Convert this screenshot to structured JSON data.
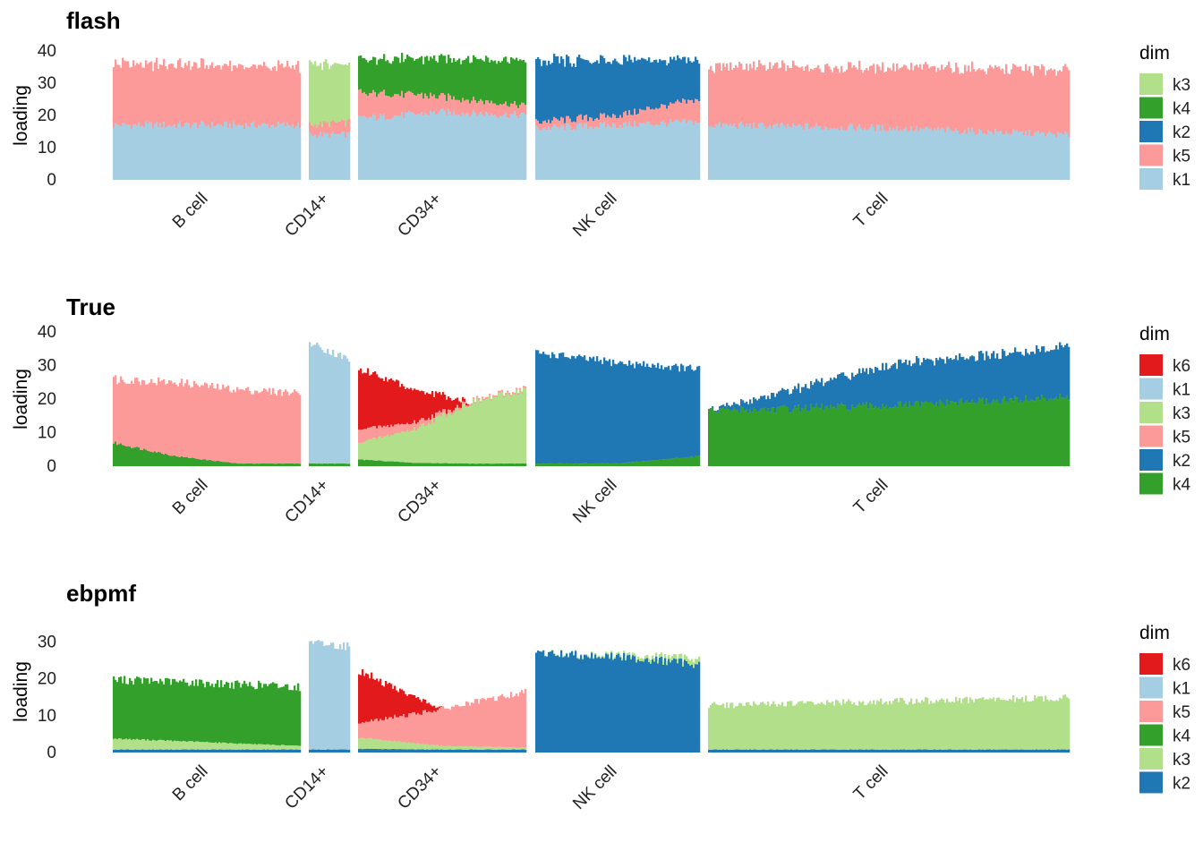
{
  "chart_data": {
    "type": "structure-plot (stacked bar)",
    "colors": {
      "k1": "#a6cee3",
      "k2": "#1f78b4",
      "k3": "#b2df8a",
      "k4": "#33a02c",
      "k5": "#fb9a99",
      "k6": "#e31a1c"
    },
    "groups": [
      "B cell",
      "CD14+",
      "CD34+",
      "NK cell",
      "T cell"
    ],
    "ylabel": "loading",
    "legend_title": "dim",
    "panels": [
      {
        "title": "flash",
        "ylim": [
          0,
          40
        ],
        "yticks": [
          0,
          10,
          20,
          30,
          40
        ],
        "legend": [
          "k3",
          "k4",
          "k2",
          "k5",
          "k1"
        ],
        "profiles": {
          "B cell": [
            {
              "k": "k1",
              "values": [
                17,
                17
              ]
            },
            {
              "k": "k5",
              "values": [
                19,
                18
              ]
            }
          ],
          "CD14+": [
            {
              "k": "k1",
              "values": [
                14,
                14
              ]
            },
            {
              "k": "k5",
              "values": [
                3,
                4
              ]
            },
            {
              "k": "k3",
              "values": [
                19,
                18
              ]
            }
          ],
          "CD34+": [
            {
              "k": "k1",
              "values": [
                19,
                21,
                20
              ]
            },
            {
              "k": "k5",
              "values": [
                8,
                5,
                3
              ]
            },
            {
              "k": "k4",
              "values": [
                10,
                12,
                14
              ]
            }
          ],
          "NK cell": [
            {
              "k": "k1",
              "values": [
                16,
                17,
                18
              ]
            },
            {
              "k": "k5",
              "values": [
                2,
                3,
                7
              ]
            },
            {
              "k": "k2",
              "values": [
                19,
                17,
                12
              ]
            }
          ],
          "T cell": [
            {
              "k": "k1",
              "values": [
                17,
                16,
                14
              ]
            },
            {
              "k": "k5",
              "values": [
                18,
                19,
                20
              ]
            }
          ]
        }
      },
      {
        "title": "True",
        "ylim": [
          0,
          40
        ],
        "yticks": [
          0,
          10,
          20,
          30,
          40
        ],
        "legend": [
          "k6",
          "k1",
          "k3",
          "k5",
          "k2",
          "k4"
        ],
        "profiles": {
          "B cell": [
            {
              "k": "k4",
              "values": [
                7,
                3,
                0.8,
                0.8
              ]
            },
            {
              "k": "k5",
              "values": [
                19,
                22,
                22,
                21
              ]
            }
          ],
          "CD14+": [
            {
              "k": "k4",
              "values": [
                0.8,
                0.8
              ]
            },
            {
              "k": "k1",
              "values": [
                36,
                31
              ]
            }
          ],
          "CD34+": [
            {
              "k": "k4",
              "values": [
                2,
                1,
                0.8,
                0.8
              ]
            },
            {
              "k": "k3",
              "values": [
                5,
                10,
                18,
                22
              ]
            },
            {
              "k": "k5",
              "values": [
                4,
                2,
                0.5,
                0.5
              ]
            },
            {
              "k": "k6",
              "values": [
                18,
                10,
                0,
                0
              ]
            }
          ],
          "NK cell": [
            {
              "k": "k4",
              "values": [
                0.8,
                0.8,
                3
              ]
            },
            {
              "k": "k2",
              "values": [
                33,
                30,
                26
              ]
            }
          ],
          "T cell": [
            {
              "k": "k4",
              "values": [
                16.5,
                18,
                20.5
              ]
            },
            {
              "k": "k2",
              "values": [
                0,
                12,
                15
              ]
            }
          ]
        }
      },
      {
        "title": "ebpmf",
        "ylim": [
          0,
          33
        ],
        "yticks": [
          0,
          10,
          20,
          30
        ],
        "legend": [
          "k6",
          "k1",
          "k5",
          "k4",
          "k3",
          "k2"
        ],
        "profiles": {
          "B cell": [
            {
              "k": "k2",
              "values": [
                0.8,
                0.8
              ]
            },
            {
              "k": "k3",
              "values": [
                3,
                1
              ]
            },
            {
              "k": "k4",
              "values": [
                16,
                16
              ]
            }
          ],
          "CD14+": [
            {
              "k": "k2",
              "values": [
                0.8,
                0.8
              ]
            },
            {
              "k": "k1",
              "values": [
                29,
                28
              ]
            }
          ],
          "CD34+": [
            {
              "k": "k2",
              "values": [
                1,
                0.8,
                0.8
              ]
            },
            {
              "k": "k3",
              "values": [
                3,
                1,
                0.5
              ]
            },
            {
              "k": "k5",
              "values": [
                4,
                10,
                15
              ]
            },
            {
              "k": "k6",
              "values": [
                14,
                0,
                0
              ]
            }
          ],
          "NK cell": [
            {
              "k": "k2",
              "values": [
                27,
                26,
                24
              ]
            },
            {
              "k": "k3",
              "values": [
                0,
                0.5,
                1.5
              ]
            }
          ],
          "T cell": [
            {
              "k": "k2",
              "values": [
                0.8,
                0.8,
                0.8
              ]
            },
            {
              "k": "k3",
              "values": [
                12,
                13,
                14
              ]
            }
          ]
        }
      }
    ]
  }
}
